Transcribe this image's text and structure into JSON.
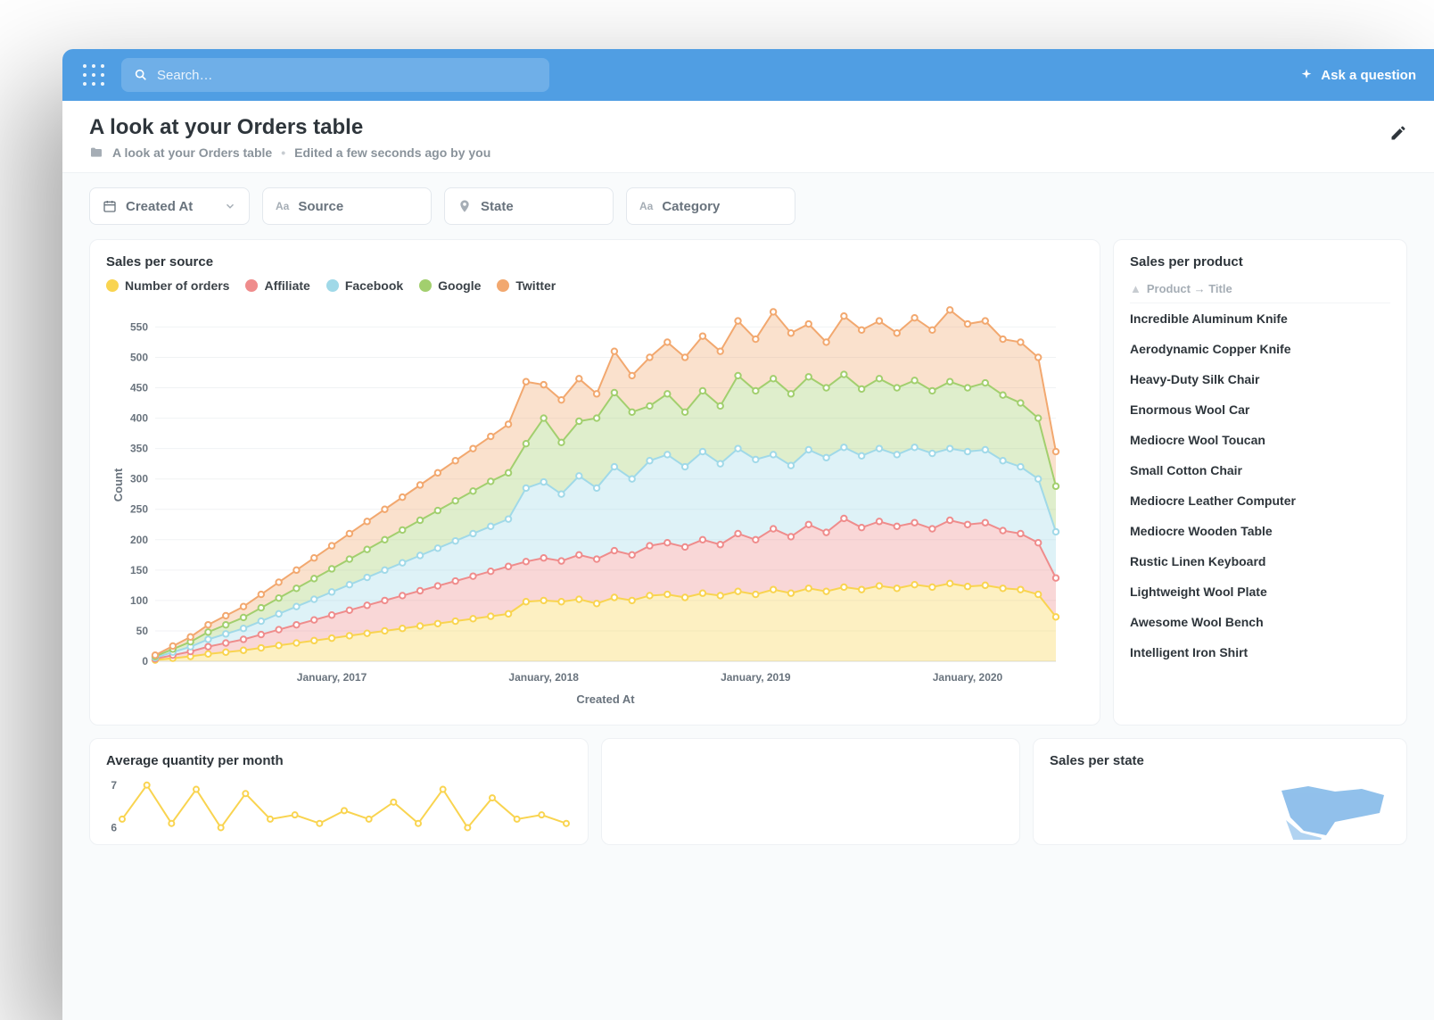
{
  "topbar": {
    "search_placeholder": "Search…",
    "ask_label": "Ask a question"
  },
  "header": {
    "title": "A look at your Orders table",
    "breadcrumb_item": "A look at your Orders table",
    "edited_text": "Edited a few seconds ago by you"
  },
  "filters": {
    "created_at": "Created At",
    "source": "Source",
    "state": "State",
    "category": "Category"
  },
  "sales_per_source": {
    "title": "Sales per source",
    "type": "stacked-area",
    "x_axis_title": "Created At",
    "y_axis_title": "Count",
    "y_ticks": [
      0,
      50,
      100,
      150,
      200,
      250,
      300,
      350,
      400,
      450,
      500,
      550
    ],
    "ylim": [
      0,
      580
    ],
    "x_tick_labels": [
      "January, 2017",
      "January, 2018",
      "January, 2019",
      "January, 2020"
    ],
    "x_tick_indices": [
      10,
      22,
      34,
      46
    ],
    "n_points": 52,
    "background_color": "#ffffff",
    "grid_color": "#f0f2f4",
    "marker_radius": 3.2,
    "line_width": 2,
    "area_opacity": 0.35,
    "legend": [
      {
        "label": "Number of orders",
        "color": "#f9d450"
      },
      {
        "label": "Affiliate",
        "color": "#ef8c8c"
      },
      {
        "label": "Facebook",
        "color": "#a0d9e8"
      },
      {
        "label": "Google",
        "color": "#a2cf6e"
      },
      {
        "label": "Twitter",
        "color": "#f2a86f"
      }
    ],
    "series": {
      "number_of_orders": [
        2,
        5,
        8,
        12,
        15,
        18,
        22,
        26,
        30,
        34,
        38,
        42,
        46,
        50,
        54,
        58,
        62,
        66,
        70,
        74,
        78,
        98,
        100,
        98,
        102,
        95,
        105,
        100,
        108,
        110,
        105,
        112,
        108,
        115,
        110,
        118,
        112,
        120,
        115,
        122,
        118,
        124,
        120,
        126,
        122,
        128,
        123,
        125,
        120,
        118,
        110,
        73
      ],
      "affiliate": [
        4,
        10,
        16,
        24,
        30,
        36,
        44,
        52,
        60,
        68,
        76,
        84,
        92,
        100,
        108,
        116,
        124,
        132,
        140,
        148,
        156,
        164,
        170,
        165,
        175,
        168,
        182,
        175,
        190,
        195,
        188,
        200,
        192,
        210,
        200,
        218,
        205,
        225,
        212,
        235,
        220,
        230,
        222,
        228,
        218,
        232,
        225,
        228,
        215,
        210,
        195,
        137
      ],
      "facebook": [
        6,
        15,
        24,
        36,
        45,
        54,
        66,
        78,
        90,
        102,
        114,
        126,
        138,
        150,
        162,
        174,
        186,
        198,
        210,
        222,
        234,
        285,
        295,
        275,
        305,
        285,
        320,
        300,
        330,
        340,
        320,
        345,
        325,
        350,
        332,
        340,
        322,
        348,
        335,
        352,
        338,
        350,
        340,
        352,
        342,
        350,
        345,
        348,
        330,
        320,
        300,
        213
      ],
      "google": [
        8,
        20,
        32,
        48,
        60,
        72,
        88,
        104,
        120,
        136,
        152,
        168,
        184,
        200,
        216,
        232,
        248,
        264,
        280,
        296,
        310,
        358,
        400,
        360,
        395,
        400,
        442,
        410,
        420,
        440,
        410,
        445,
        420,
        470,
        445,
        465,
        440,
        468,
        450,
        472,
        448,
        465,
        450,
        462,
        445,
        460,
        450,
        458,
        438,
        425,
        400,
        288
      ],
      "twitter": [
        10,
        25,
        40,
        60,
        75,
        90,
        110,
        130,
        150,
        170,
        190,
        210,
        230,
        250,
        270,
        290,
        310,
        330,
        350,
        370,
        390,
        460,
        455,
        430,
        465,
        440,
        510,
        470,
        500,
        525,
        500,
        535,
        510,
        560,
        530,
        575,
        540,
        555,
        525,
        568,
        545,
        560,
        540,
        565,
        545,
        578,
        555,
        560,
        530,
        525,
        500,
        345
      ]
    }
  },
  "sales_per_product": {
    "title": "Sales per product",
    "column_header": "Product → Title",
    "rows": [
      "Incredible Aluminum Knife",
      "Aerodynamic Copper Knife",
      "Heavy-Duty Silk Chair",
      "Enormous Wool Car",
      "Mediocre Wool Toucan",
      "Small Cotton Chair",
      "Mediocre Leather Computer",
      "Mediocre Wooden Table",
      "Rustic Linen Keyboard",
      "Lightweight Wool Plate",
      "Awesome Wool Bench",
      "Intelligent Iron Shirt"
    ]
  },
  "avg_qty": {
    "title": "Average quantity per month",
    "type": "line",
    "color": "#f9d450",
    "y_ticks": [
      6,
      7
    ],
    "values": [
      6.2,
      7.0,
      6.1,
      6.9,
      6.0,
      6.8,
      6.2,
      6.3,
      6.1,
      6.4,
      6.2,
      6.6,
      6.1,
      6.9,
      6.0,
      6.7,
      6.2,
      6.3,
      6.1
    ]
  },
  "sales_per_state": {
    "title": "Sales per state",
    "type": "choropleth-map",
    "fill_color": "#7eb6e8"
  }
}
